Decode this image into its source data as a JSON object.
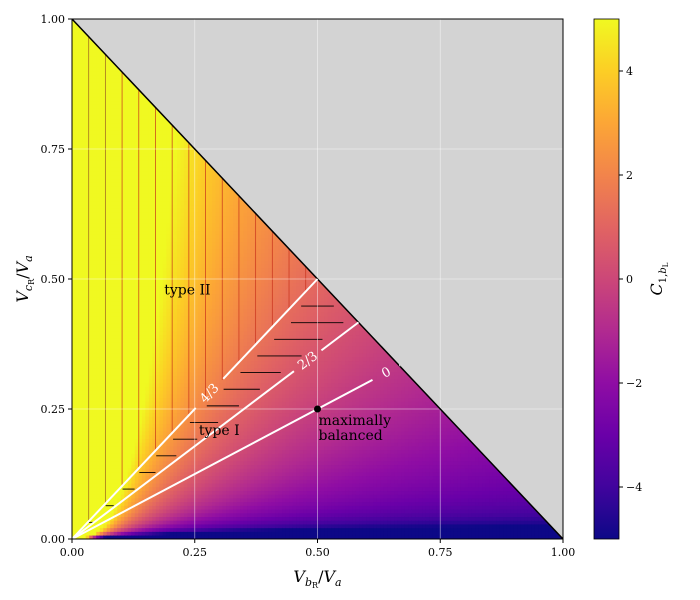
{
  "chart_data": {
    "type": "heatmap",
    "xlabel": "V_bR / V_a",
    "ylabel": "V_cR / V_a",
    "colorbar_label": "C_1,bL",
    "xlim": [
      0,
      1
    ],
    "ylim": [
      0,
      1
    ],
    "x_ticks": [
      "0.00",
      "0.25",
      "0.50",
      "0.75",
      "1.00"
    ],
    "y_ticks": [
      "0.00",
      "0.25",
      "0.50",
      "0.75",
      "1.00"
    ],
    "colorbar_range": [
      -5,
      5
    ],
    "colorbar_ticks": [
      "4",
      "2",
      "0",
      "−2",
      "−4"
    ],
    "colormap": "plasma",
    "infeasible_color": "#d3d3d3",
    "grid": true,
    "contours": [
      {
        "label": "4/3",
        "slope": 1.0
      },
      {
        "label": "2/3",
        "slope": 0.714
      },
      {
        "label": "0",
        "slope": 0.5
      }
    ],
    "regions": [
      {
        "label": "type II",
        "x": 0.235,
        "y": 0.47
      },
      {
        "label": "type I",
        "x": 0.3,
        "y": 0.2
      }
    ],
    "point": {
      "label_lines": [
        "maximally",
        "balanced"
      ],
      "x": 0.5,
      "y": 0.25
    }
  }
}
